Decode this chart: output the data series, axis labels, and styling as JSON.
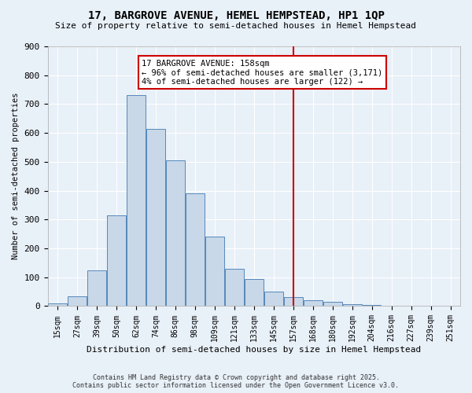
{
  "title": "17, BARGROVE AVENUE, HEMEL HEMPSTEAD, HP1 1QP",
  "subtitle": "Size of property relative to semi-detached houses in Hemel Hempstead",
  "xlabel": "Distribution of semi-detached houses by size in Hemel Hempstead",
  "ylabel": "Number of semi-detached properties",
  "footer_line1": "Contains HM Land Registry data © Crown copyright and database right 2025.",
  "footer_line2": "Contains public sector information licensed under the Open Government Licence v3.0.",
  "categories": [
    "15sqm",
    "27sqm",
    "39sqm",
    "50sqm",
    "62sqm",
    "74sqm",
    "86sqm",
    "98sqm",
    "109sqm",
    "121sqm",
    "133sqm",
    "145sqm",
    "157sqm",
    "168sqm",
    "180sqm",
    "192sqm",
    "204sqm",
    "216sqm",
    "227sqm",
    "239sqm",
    "251sqm"
  ],
  "values": [
    10,
    35,
    125,
    315,
    730,
    615,
    505,
    390,
    240,
    128,
    95,
    50,
    30,
    20,
    15,
    8,
    5,
    2,
    1,
    0,
    0
  ],
  "bar_color": "#c8d8e8",
  "bar_edge_color": "#5588bb",
  "bg_color": "#e8f0f8",
  "grid_color": "#ffffff",
  "annotation_box_color": "#cc0000",
  "annotation_line1": "17 BARGROVE AVENUE: 158sqm",
  "annotation_line2": "← 96% of semi-detached houses are smaller (3,171)",
  "annotation_line3": "4% of semi-detached houses are larger (122) →",
  "vline_color": "#cc0000",
  "ylim": [
    0,
    900
  ],
  "yticks": [
    0,
    100,
    200,
    300,
    400,
    500,
    600,
    700,
    800,
    900
  ]
}
